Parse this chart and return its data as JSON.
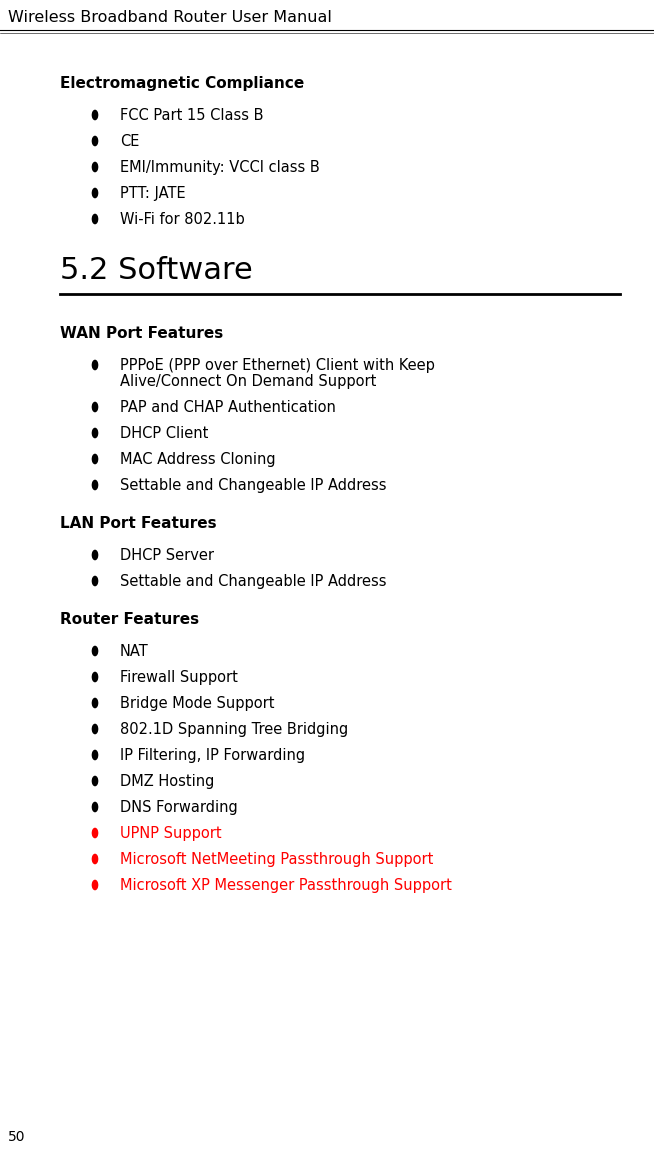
{
  "header_title": "Wireless Broadband Router User Manual",
  "page_number": "50",
  "bg": "#ffffff",
  "black": "#000000",
  "red": "#ff0000",
  "header_font_size": 11.5,
  "body_font_size": 10.5,
  "bold_font_size": 11,
  "section_font_size": 22,
  "items": [
    {
      "type": "header"
    },
    {
      "type": "vspace",
      "pts": 38
    },
    {
      "type": "bold_heading",
      "text": "Electromagnetic Compliance"
    },
    {
      "type": "vspace",
      "pts": 14
    },
    {
      "type": "bullet",
      "text": "FCC Part 15 Class B",
      "color": "black"
    },
    {
      "type": "vspace",
      "pts": 10
    },
    {
      "type": "bullet",
      "text": "CE",
      "color": "black"
    },
    {
      "type": "vspace",
      "pts": 10
    },
    {
      "type": "bullet",
      "text": "EMI/Immunity: VCCI class B",
      "color": "black"
    },
    {
      "type": "vspace",
      "pts": 10
    },
    {
      "type": "bullet",
      "text": "PTT: JATE",
      "color": "black"
    },
    {
      "type": "vspace",
      "pts": 10
    },
    {
      "type": "bullet",
      "text": "Wi-Fi for 802.11b",
      "color": "black"
    },
    {
      "type": "vspace",
      "pts": 28
    },
    {
      "type": "section_heading",
      "text": "5.2 Software"
    },
    {
      "type": "section_line"
    },
    {
      "type": "vspace",
      "pts": 28
    },
    {
      "type": "bold_heading",
      "text": "WAN Port Features"
    },
    {
      "type": "vspace",
      "pts": 14
    },
    {
      "type": "bullet_wrap",
      "line1": "PPPoE (PPP over Ethernet) Client with Keep",
      "line2": "Alive/Connect On Demand Support",
      "color": "black"
    },
    {
      "type": "vspace",
      "pts": 10
    },
    {
      "type": "bullet",
      "text": "PAP and CHAP Authentication",
      "color": "black"
    },
    {
      "type": "vspace",
      "pts": 10
    },
    {
      "type": "bullet",
      "text": "DHCP Client",
      "color": "black"
    },
    {
      "type": "vspace",
      "pts": 10
    },
    {
      "type": "bullet",
      "text": "MAC Address Cloning",
      "color": "black"
    },
    {
      "type": "vspace",
      "pts": 10
    },
    {
      "type": "bullet",
      "text": "Settable and Changeable IP Address",
      "color": "black"
    },
    {
      "type": "vspace",
      "pts": 22
    },
    {
      "type": "bold_heading",
      "text": "LAN Port Features"
    },
    {
      "type": "vspace",
      "pts": 14
    },
    {
      "type": "bullet",
      "text": "DHCP Server",
      "color": "black"
    },
    {
      "type": "vspace",
      "pts": 10
    },
    {
      "type": "bullet",
      "text": "Settable and Changeable IP Address",
      "color": "black"
    },
    {
      "type": "vspace",
      "pts": 22
    },
    {
      "type": "bold_heading",
      "text": "Router Features"
    },
    {
      "type": "vspace",
      "pts": 14
    },
    {
      "type": "bullet",
      "text": "NAT",
      "color": "black"
    },
    {
      "type": "vspace",
      "pts": 10
    },
    {
      "type": "bullet",
      "text": "Firewall Support",
      "color": "black"
    },
    {
      "type": "vspace",
      "pts": 10
    },
    {
      "type": "bullet",
      "text": "Bridge Mode Support",
      "color": "black"
    },
    {
      "type": "vspace",
      "pts": 10
    },
    {
      "type": "bullet",
      "text": "802.1D Spanning Tree Bridging",
      "color": "black"
    },
    {
      "type": "vspace",
      "pts": 10
    },
    {
      "type": "bullet",
      "text": "IP Filtering, IP Forwarding",
      "color": "black"
    },
    {
      "type": "vspace",
      "pts": 10
    },
    {
      "type": "bullet",
      "text": "DMZ Hosting",
      "color": "black"
    },
    {
      "type": "vspace",
      "pts": 10
    },
    {
      "type": "bullet",
      "text": "DNS Forwarding",
      "color": "black"
    },
    {
      "type": "vspace",
      "pts": 10
    },
    {
      "type": "bullet",
      "text": "UPNP Support",
      "color": "red"
    },
    {
      "type": "vspace",
      "pts": 10
    },
    {
      "type": "bullet",
      "text": "Microsoft NetMeeting Passthrough Support",
      "color": "red"
    },
    {
      "type": "vspace",
      "pts": 10
    },
    {
      "type": "bullet",
      "text": "Microsoft XP Messenger Passthrough Support",
      "color": "red"
    }
  ]
}
